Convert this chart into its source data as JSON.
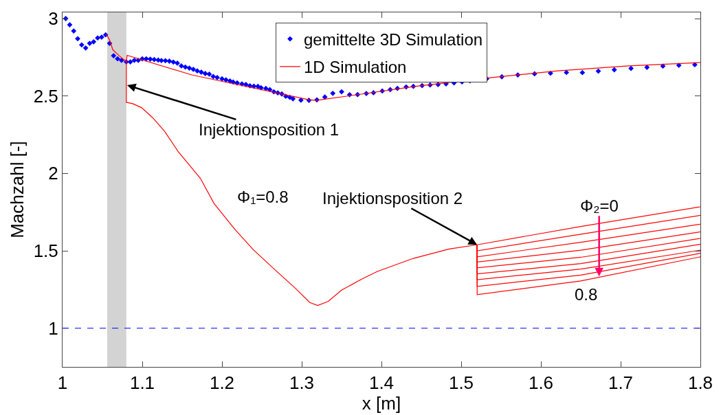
{
  "chart_data": {
    "type": "line",
    "xlabel": "x [m]",
    "ylabel": "Machzahl [-]",
    "xlim": [
      1,
      1.8
    ],
    "xticks": [
      1,
      1.1,
      1.2,
      1.3,
      1.4,
      1.5,
      1.6,
      1.7,
      1.8
    ],
    "ylim": [
      0.75,
      3.04
    ],
    "yticks": [
      1,
      1.5,
      2,
      2.5,
      3
    ],
    "grid": false,
    "legend": "top",
    "series": [
      {
        "name": "gemittelte 3D Simulation",
        "type": "scatter",
        "marker": "diamond",
        "color": "#0000ff",
        "x": [
          1.004,
          1.009,
          1.014,
          1.019,
          1.024,
          1.029,
          1.034,
          1.039,
          1.044,
          1.049,
          1.054,
          1.059,
          1.064,
          1.069,
          1.074,
          1.08,
          1.085,
          1.09,
          1.095,
          1.1,
          1.105,
          1.11,
          1.115,
          1.12,
          1.124,
          1.129,
          1.134,
          1.139,
          1.144,
          1.149,
          1.154,
          1.159,
          1.164,
          1.169,
          1.174,
          1.179,
          1.184,
          1.189,
          1.194,
          1.2,
          1.205,
          1.21,
          1.214,
          1.219,
          1.225,
          1.23,
          1.235,
          1.24,
          1.245,
          1.249,
          1.255,
          1.26,
          1.265,
          1.27,
          1.275,
          1.28,
          1.285,
          1.289,
          1.299,
          1.309,
          1.319,
          1.329,
          1.339,
          1.35,
          1.36,
          1.37,
          1.381,
          1.39,
          1.401,
          1.411,
          1.42,
          1.431,
          1.44,
          1.451,
          1.461,
          1.471,
          1.481,
          1.491,
          1.501,
          1.511,
          1.532,
          1.551,
          1.571,
          1.592,
          1.612,
          1.632,
          1.652,
          1.672,
          1.692,
          1.713,
          1.733,
          1.753,
          1.773,
          1.793
        ],
        "values": [
          3.0,
          2.96,
          2.92,
          2.87,
          2.83,
          2.81,
          2.84,
          2.85,
          2.875,
          2.88,
          2.895,
          2.84,
          2.76,
          2.74,
          2.73,
          2.72,
          2.72,
          2.73,
          2.73,
          2.74,
          2.74,
          2.738,
          2.735,
          2.732,
          2.729,
          2.728,
          2.725,
          2.719,
          2.712,
          2.694,
          2.687,
          2.68,
          2.672,
          2.662,
          2.654,
          2.645,
          2.641,
          2.626,
          2.619,
          2.611,
          2.604,
          2.597,
          2.59,
          2.584,
          2.578,
          2.574,
          2.566,
          2.563,
          2.562,
          2.553,
          2.549,
          2.541,
          2.527,
          2.52,
          2.513,
          2.498,
          2.491,
          2.482,
          2.473,
          2.472,
          2.475,
          2.493,
          2.517,
          2.527,
          2.508,
          2.509,
          2.516,
          2.521,
          2.532,
          2.541,
          2.549,
          2.558,
          2.562,
          2.567,
          2.571,
          2.574,
          2.578,
          2.585,
          2.591,
          2.598,
          2.611,
          2.624,
          2.636,
          2.643,
          2.647,
          2.652,
          2.651,
          2.66,
          2.669,
          2.678,
          2.685,
          2.693,
          2.698,
          2.702
        ]
      },
      {
        "name": "1D Simulation",
        "color": "#ff0000",
        "x": [
          1.055,
          1.059,
          1.063,
          1.071,
          1.076,
          1.08,
          1.081,
          1.162,
          1.309,
          1.318,
          1.361,
          1.443,
          1.532,
          1.621,
          1.71,
          1.8,
          null,
          1.08,
          1.08,
          1.088,
          1.099,
          1.113,
          1.128,
          1.145,
          1.159,
          1.173,
          1.19,
          1.216,
          1.239,
          1.265,
          1.293,
          1.31,
          1.32,
          1.333,
          1.35,
          1.376,
          1.395,
          1.44,
          1.485,
          1.52,
          1.65,
          1.8,
          null,
          1.52,
          1.52,
          1.65,
          1.8,
          null,
          1.52,
          1.52,
          1.65,
          1.8,
          null,
          1.52,
          1.52,
          1.65,
          1.8,
          null,
          1.52,
          1.52,
          1.65,
          1.8,
          null,
          1.52,
          1.52,
          1.65,
          1.8,
          null,
          1.52,
          1.52,
          1.65,
          1.8,
          null,
          1.52,
          1.52,
          1.65,
          1.8,
          null,
          1.52,
          1.52,
          1.65,
          1.8
        ],
        "values": [
          2.898,
          2.862,
          2.799,
          2.76,
          2.738,
          2.724,
          2.763,
          2.636,
          2.476,
          2.471,
          2.502,
          2.562,
          2.616,
          2.662,
          2.694,
          2.716,
          null,
          2.724,
          2.459,
          2.45,
          2.425,
          2.36,
          2.272,
          2.141,
          2.054,
          1.967,
          1.806,
          1.639,
          1.508,
          1.384,
          1.253,
          1.166,
          1.147,
          1.173,
          1.246,
          1.319,
          1.367,
          1.451,
          1.512,
          1.539,
          1.657,
          1.784,
          null,
          1.539,
          1.5,
          1.607,
          1.729,
          null,
          1.539,
          1.461,
          1.555,
          1.672,
          null,
          1.539,
          1.428,
          1.504,
          1.622,
          null,
          1.539,
          1.39,
          1.458,
          1.58,
          null,
          1.539,
          1.351,
          1.417,
          1.542,
          null,
          1.539,
          1.313,
          1.382,
          1.504,
          null,
          1.539,
          1.27,
          1.343,
          1.484,
          null,
          1.539,
          1.217,
          1.305,
          1.461
        ]
      }
    ],
    "ref_lines": [
      {
        "axis": "y",
        "value": 1,
        "color": "#0000ff",
        "line_style": "dashed"
      }
    ],
    "bands": [
      {
        "axis": "x",
        "from": 1.056,
        "to": 1.08,
        "color": "#d3d3d3"
      }
    ],
    "annotations": [
      {
        "text": "Injektionsposition 1",
        "x": 1.081,
        "y": 2.57
      },
      {
        "text": "Injektionsposition 2",
        "x": 1.52,
        "y": 1.539
      },
      "Φ₁=0.8",
      {
        "text": "Φ₂=0",
        "x": 1.673,
        "y": 1.335
      },
      "0.8"
    ]
  }
}
